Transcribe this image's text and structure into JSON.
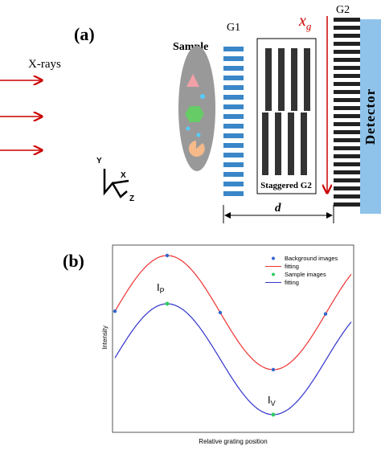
{
  "panel_a": {
    "label": "(a)",
    "source": "X-rays",
    "sample": "Sample",
    "g1": "G1",
    "g2": "G2",
    "shift": {
      "main": "x",
      "sub": "g"
    },
    "staggered": "Staggered G2",
    "detector": "Detector",
    "distance": "d",
    "axes": {
      "y": "Y",
      "x": "X",
      "z": "Z"
    }
  },
  "panel_b": {
    "label": "(b)",
    "y_axis": "Intensity",
    "x_axis": "Relative grating position",
    "legend": [
      "Background images",
      "fitting",
      "Sample images",
      "fitting"
    ],
    "peak": {
      "main": "I",
      "sub": "P"
    },
    "valley": {
      "main": "I",
      "sub": "V"
    }
  }
}
